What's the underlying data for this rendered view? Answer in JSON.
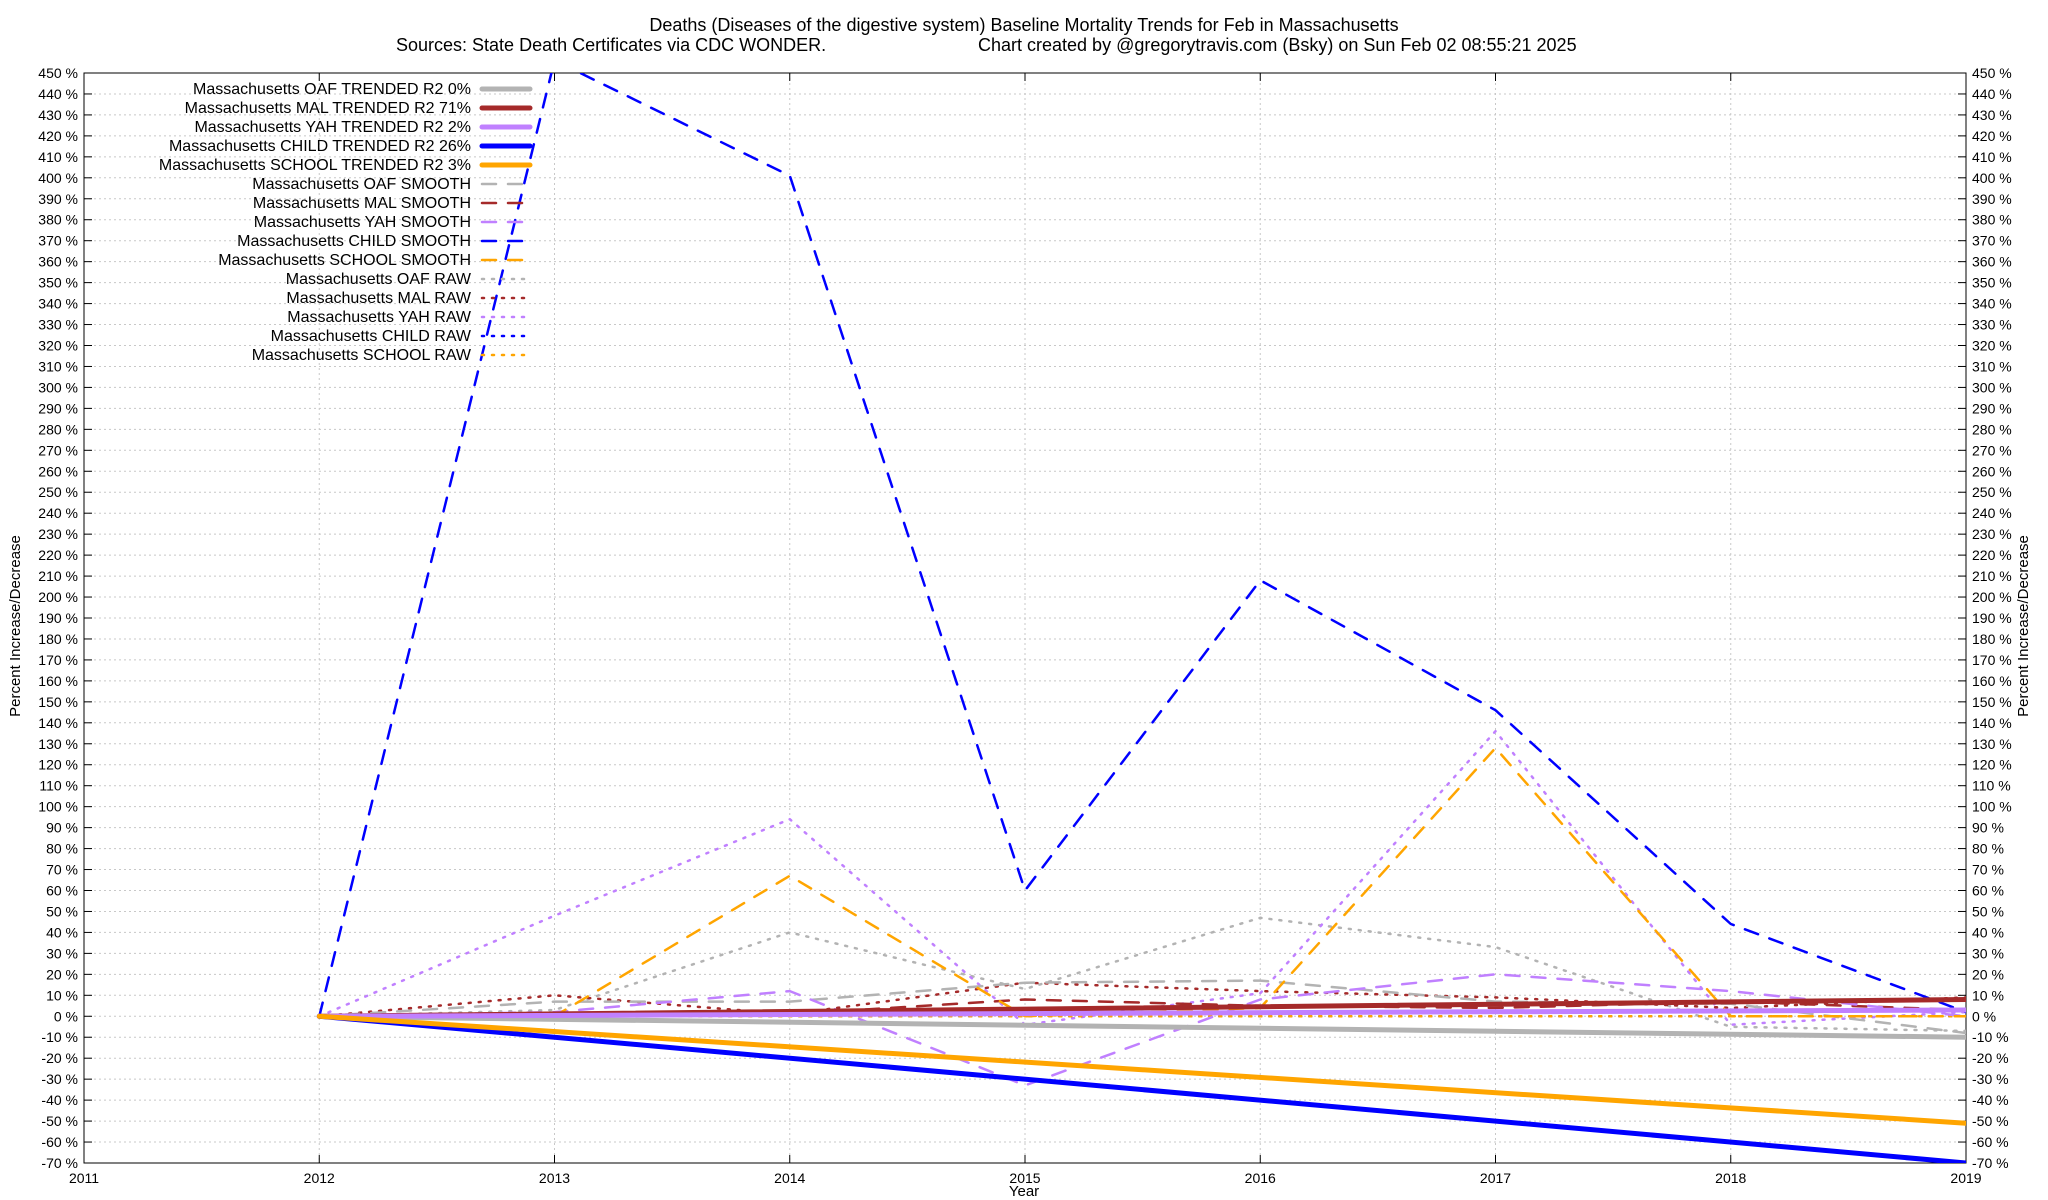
{
  "title_line1": "Deaths (Diseases of the digestive system)  Baseline Mortality Trends for Feb in Massachusetts",
  "title_line2_left": "Sources: State Death Certificates via CDC WONDER.",
  "title_line2_right": "Chart created by @gregorytravis.com (Bsky) on Sun Feb 02 08:55:21 2025",
  "colors": {
    "OAF": "#b3b3b3",
    "MAL": "#a52a2a",
    "YAH": "#c080ff",
    "CHILD": "#0000ff",
    "SCHOOL": "#ffa500",
    "grid": "#c8c8c8"
  },
  "chart_data": {
    "type": "line",
    "xlabel": "Year",
    "ylabel": "Percent Increase/Decrease",
    "y2label": "Percent Increase/Decrease",
    "xlim": [
      2011,
      2019
    ],
    "ylim": [
      -70,
      450
    ],
    "x_ticks": [
      2011,
      2012,
      2013,
      2014,
      2015,
      2016,
      2017,
      2018,
      2019
    ],
    "y_tick_step": 10,
    "y_tick_suffix": " %",
    "grid": true,
    "legend_position": "top-left",
    "series": [
      {
        "name": "Massachusetts OAF TRENDED R2  0%",
        "group": "OAF",
        "style": "trend",
        "x": [
          2012,
          2019
        ],
        "y": [
          0,
          -10
        ]
      },
      {
        "name": "Massachusetts MAL TRENDED R2  71%",
        "group": "MAL",
        "style": "trend",
        "x": [
          2012,
          2019
        ],
        "y": [
          0,
          8
        ]
      },
      {
        "name": "Massachusetts YAH TRENDED R2  2%",
        "group": "YAH",
        "style": "trend",
        "x": [
          2012,
          2019
        ],
        "y": [
          0,
          3
        ]
      },
      {
        "name": "Massachusetts CHILD TRENDED R2  26%",
        "group": "CHILD",
        "style": "trend",
        "x": [
          2012,
          2019
        ],
        "y": [
          0,
          -70
        ]
      },
      {
        "name": "Massachusetts SCHOOL TRENDED R2  3%",
        "group": "SCHOOL",
        "style": "trend",
        "x": [
          2012,
          2019
        ],
        "y": [
          0,
          -51
        ]
      },
      {
        "name": "Massachusetts OAF SMOOTH",
        "group": "OAF",
        "style": "smooth",
        "x": [
          2012,
          2013,
          2014,
          2015,
          2016,
          2017,
          2018,
          2019
        ],
        "y": [
          0,
          7,
          7,
          16,
          17,
          7,
          6,
          -8
        ]
      },
      {
        "name": "Massachusetts MAL SMOOTH",
        "group": "MAL",
        "style": "smooth",
        "x": [
          2012,
          2013,
          2014,
          2015,
          2016,
          2017,
          2018,
          2019
        ],
        "y": [
          0,
          1,
          1,
          8,
          5,
          4,
          7,
          3
        ]
      },
      {
        "name": "Massachusetts YAH SMOOTH",
        "group": "YAH",
        "style": "smooth",
        "x": [
          2012,
          2013,
          2014,
          2015,
          2016,
          2017,
          2018,
          2019
        ],
        "y": [
          0,
          2,
          12,
          -33,
          8,
          20,
          12,
          0
        ]
      },
      {
        "name": "Massachusetts CHILD SMOOTH",
        "group": "CHILD",
        "style": "smooth",
        "x": [
          2012,
          2013,
          2014,
          2015,
          2016,
          2017,
          2018,
          2019
        ],
        "y": [
          0,
          456,
          401,
          60,
          208,
          146,
          44,
          2
        ]
      },
      {
        "name": "Massachusetts SCHOOL SMOOTH",
        "group": "SCHOOL",
        "style": "smooth",
        "x": [
          2012,
          2013,
          2014,
          2015,
          2016,
          2017,
          2018,
          2019
        ],
        "y": [
          0,
          0,
          67,
          0,
          4,
          128,
          0,
          0
        ]
      },
      {
        "name": "Massachusetts OAF RAW",
        "group": "OAF",
        "style": "raw",
        "x": [
          2012,
          2013,
          2014,
          2015,
          2016,
          2017,
          2018,
          2019
        ],
        "y": [
          0,
          3,
          40,
          13,
          47,
          33,
          -5,
          -7
        ]
      },
      {
        "name": "Massachusetts MAL RAW",
        "group": "MAL",
        "style": "raw",
        "x": [
          2012,
          2013,
          2014,
          2015,
          2016,
          2017,
          2018,
          2019
        ],
        "y": [
          0,
          10,
          1,
          16,
          12,
          9,
          4,
          9
        ]
      },
      {
        "name": "Massachusetts YAH RAW",
        "group": "YAH",
        "style": "raw",
        "x": [
          2012,
          2013,
          2014,
          2015,
          2016,
          2017,
          2018,
          2019
        ],
        "y": [
          0,
          48,
          94,
          -4,
          11,
          136,
          -4,
          2
        ]
      },
      {
        "name": "Massachusetts CHILD RAW",
        "group": "CHILD",
        "style": "raw",
        "x": [
          2012,
          2013,
          2014,
          2015,
          2016,
          2017,
          2018,
          2019
        ],
        "y": [
          0,
          0,
          0,
          0,
          0,
          0,
          0,
          0
        ]
      },
      {
        "name": "Massachusetts SCHOOL RAW",
        "group": "SCHOOL",
        "style": "raw",
        "x": [
          2012,
          2013,
          2014,
          2015,
          2016,
          2017,
          2018,
          2019
        ],
        "y": [
          0,
          0,
          0,
          0,
          0,
          0,
          0,
          0
        ]
      }
    ]
  }
}
